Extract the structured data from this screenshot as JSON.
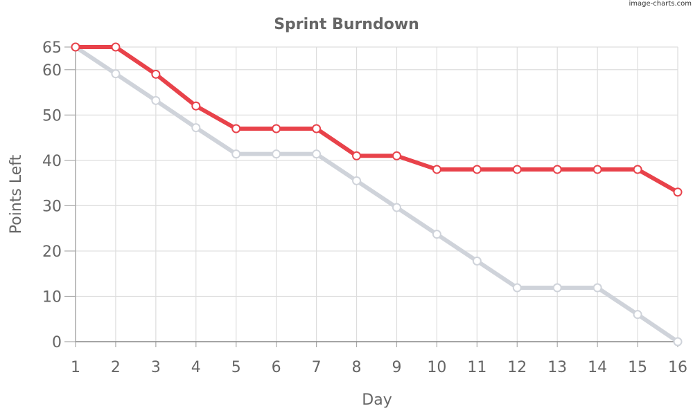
{
  "watermark": "image-charts.com",
  "chart_data": {
    "type": "line",
    "title": "Sprint Burndown",
    "xlabel": "Day",
    "ylabel": "Points Left",
    "categories": [
      "1",
      "2",
      "3",
      "4",
      "5",
      "6",
      "7",
      "8",
      "9",
      "10",
      "11",
      "12",
      "13",
      "14",
      "15",
      "16"
    ],
    "yticks": [
      0,
      10,
      20,
      30,
      40,
      50,
      60,
      65
    ],
    "ylim": [
      0,
      65
    ],
    "grid": true,
    "series": [
      {
        "color": "#cfd3da",
        "values": [
          65,
          59.1,
          53.2,
          47.2,
          41.4,
          41.4,
          41.4,
          35.5,
          29.6,
          23.7,
          17.8,
          11.9,
          11.9,
          11.9,
          6,
          0
        ]
      },
      {
        "color": "#e8424a",
        "values": [
          65,
          65,
          59,
          52,
          47,
          47,
          47,
          41,
          41,
          38,
          38,
          38,
          38,
          38,
          38,
          33
        ]
      }
    ]
  }
}
